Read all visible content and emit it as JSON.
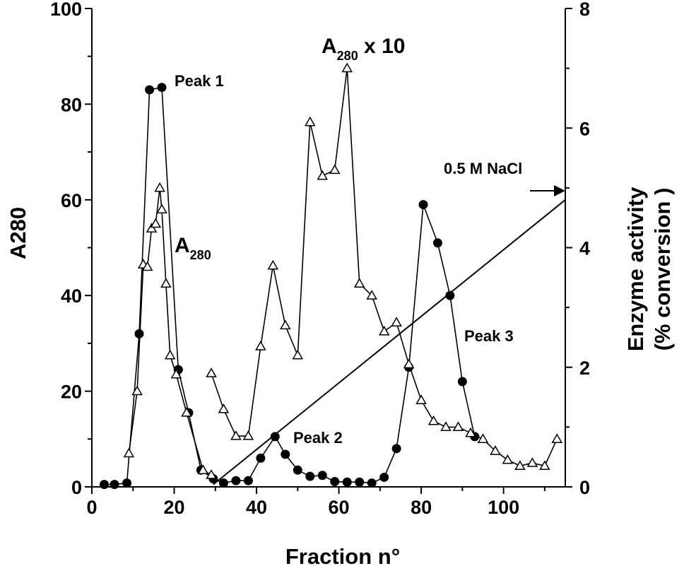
{
  "chart_data": {
    "type": "line",
    "xlabel": "Fraction n°",
    "ylabel_left": "A280",
    "ylabel_right_line1": "Enzyme activity",
    "ylabel_right_line2": "(% conversion )",
    "xlim": [
      0,
      115
    ],
    "ylim_left": [
      0,
      100
    ],
    "ylim_right": [
      0,
      8
    ],
    "x_ticks": [
      "0",
      "20",
      "40",
      "60",
      "80",
      "100"
    ],
    "y_left_ticks": [
      "0",
      "20",
      "40",
      "60",
      "80",
      "100"
    ],
    "y_right_ticks": [
      "0",
      "2",
      "4",
      "6",
      "8"
    ],
    "grid": false,
    "series": [
      {
        "marker": "filled-circle",
        "axis": "left",
        "x": [
          3,
          5.5,
          8.5,
          11.5,
          14,
          17,
          21,
          23.5,
          26.5,
          29.5,
          32,
          35,
          38,
          41,
          44.5,
          47,
          50,
          53,
          56,
          59,
          62,
          65,
          68,
          71,
          74,
          77,
          80.5,
          84,
          87,
          90,
          93
        ],
        "y": [
          0.5,
          0.5,
          0.8,
          32,
          83,
          83.5,
          24.5,
          15.5,
          3.5,
          1.7,
          0.8,
          1.3,
          1.3,
          6,
          10.5,
          6.8,
          3.5,
          2.2,
          2.4,
          1.1,
          1,
          1,
          0.8,
          2,
          8,
          25,
          59,
          51,
          40,
          22,
          10.5
        ]
      },
      {
        "marker": "open-triangle",
        "axis": "left",
        "x": [
          9,
          11,
          12.5,
          13.5,
          14.5,
          15.5,
          16.5,
          17,
          18,
          19,
          20.5,
          23,
          27,
          29
        ],
        "y": [
          7,
          20,
          46.5,
          46,
          54,
          55,
          62.5,
          58,
          42.5,
          27.5,
          23.5,
          15.5,
          3.5,
          2.5
        ]
      },
      {
        "marker": "open-triangle",
        "axis": "right",
        "x": [
          29,
          32,
          35,
          38,
          41,
          44,
          47,
          50,
          53,
          56,
          59,
          62,
          65,
          68,
          71,
          74,
          77,
          80,
          83,
          86,
          89,
          92,
          95,
          98,
          101,
          104,
          107,
          110,
          113
        ],
        "y": [
          1.9,
          1.3,
          0.85,
          0.85,
          2.35,
          3.7,
          2.7,
          2.2,
          6.1,
          5.2,
          5.3,
          7,
          3.4,
          3.2,
          2.6,
          2.75,
          2.05,
          1.45,
          1.1,
          1,
          1,
          0.9,
          0.8,
          0.6,
          0.45,
          0.35,
          0.4,
          0.35,
          0.8
        ]
      }
    ],
    "gradient_line": {
      "x": [
        29.5,
        115
      ],
      "y_left": [
        0.5,
        60
      ]
    },
    "annotations": {
      "peak1": "Peak 1",
      "peak2": "Peak 2",
      "peak3": "Peak 3",
      "a280_main": "A",
      "a280_main_sub": "280",
      "a280_x10_main": "A",
      "a280_x10_sub": "280",
      "a280_x10_suffix": " x 10",
      "nacl": "0.5 M NaCl"
    }
  }
}
